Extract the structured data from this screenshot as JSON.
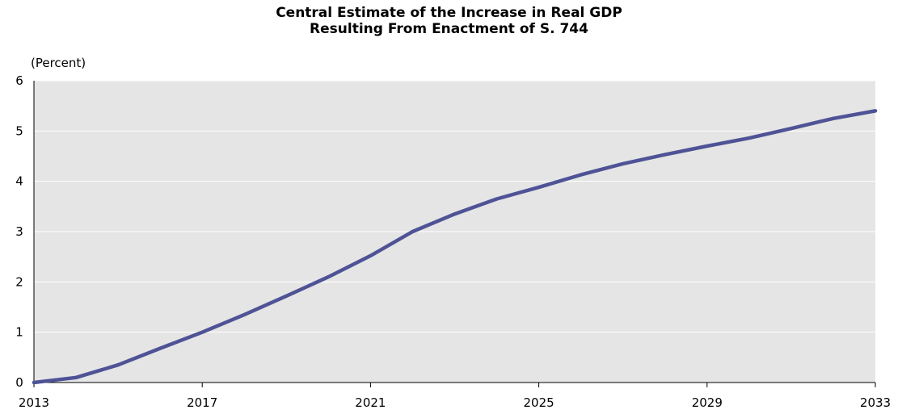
{
  "chart_data": {
    "type": "line",
    "title": "Central Estimate of the Increase in Real GDP",
    "subtitle": "Resulting From Enactment of S. 744",
    "y_unit_label": "(Percent)",
    "xlabel": "",
    "ylabel": "",
    "xlim": [
      2013,
      2033
    ],
    "ylim": [
      0,
      6
    ],
    "x_ticks": [
      2013,
      2017,
      2021,
      2025,
      2029,
      2033
    ],
    "y_ticks": [
      0,
      1,
      2,
      3,
      4,
      5,
      6
    ],
    "grid": true,
    "legend": "none",
    "series": [
      {
        "x": [
          2013,
          2014,
          2015,
          2016,
          2017,
          2018,
          2019,
          2020,
          2021,
          2022,
          2023,
          2024,
          2025,
          2026,
          2027,
          2028,
          2029,
          2030,
          2031,
          2032,
          2033
        ],
        "values": [
          0.0,
          0.1,
          0.35,
          0.68,
          1.0,
          1.35,
          1.72,
          2.1,
          2.52,
          3.0,
          3.35,
          3.65,
          3.88,
          4.13,
          4.35,
          4.53,
          4.7,
          4.86,
          5.05,
          5.25,
          5.4
        ],
        "color": "#4f5396"
      }
    ]
  },
  "colors": {
    "plot_background": "#e5e5e5",
    "gridline": "#ffffff",
    "axis": "#000000",
    "line": "#4f5396"
  }
}
